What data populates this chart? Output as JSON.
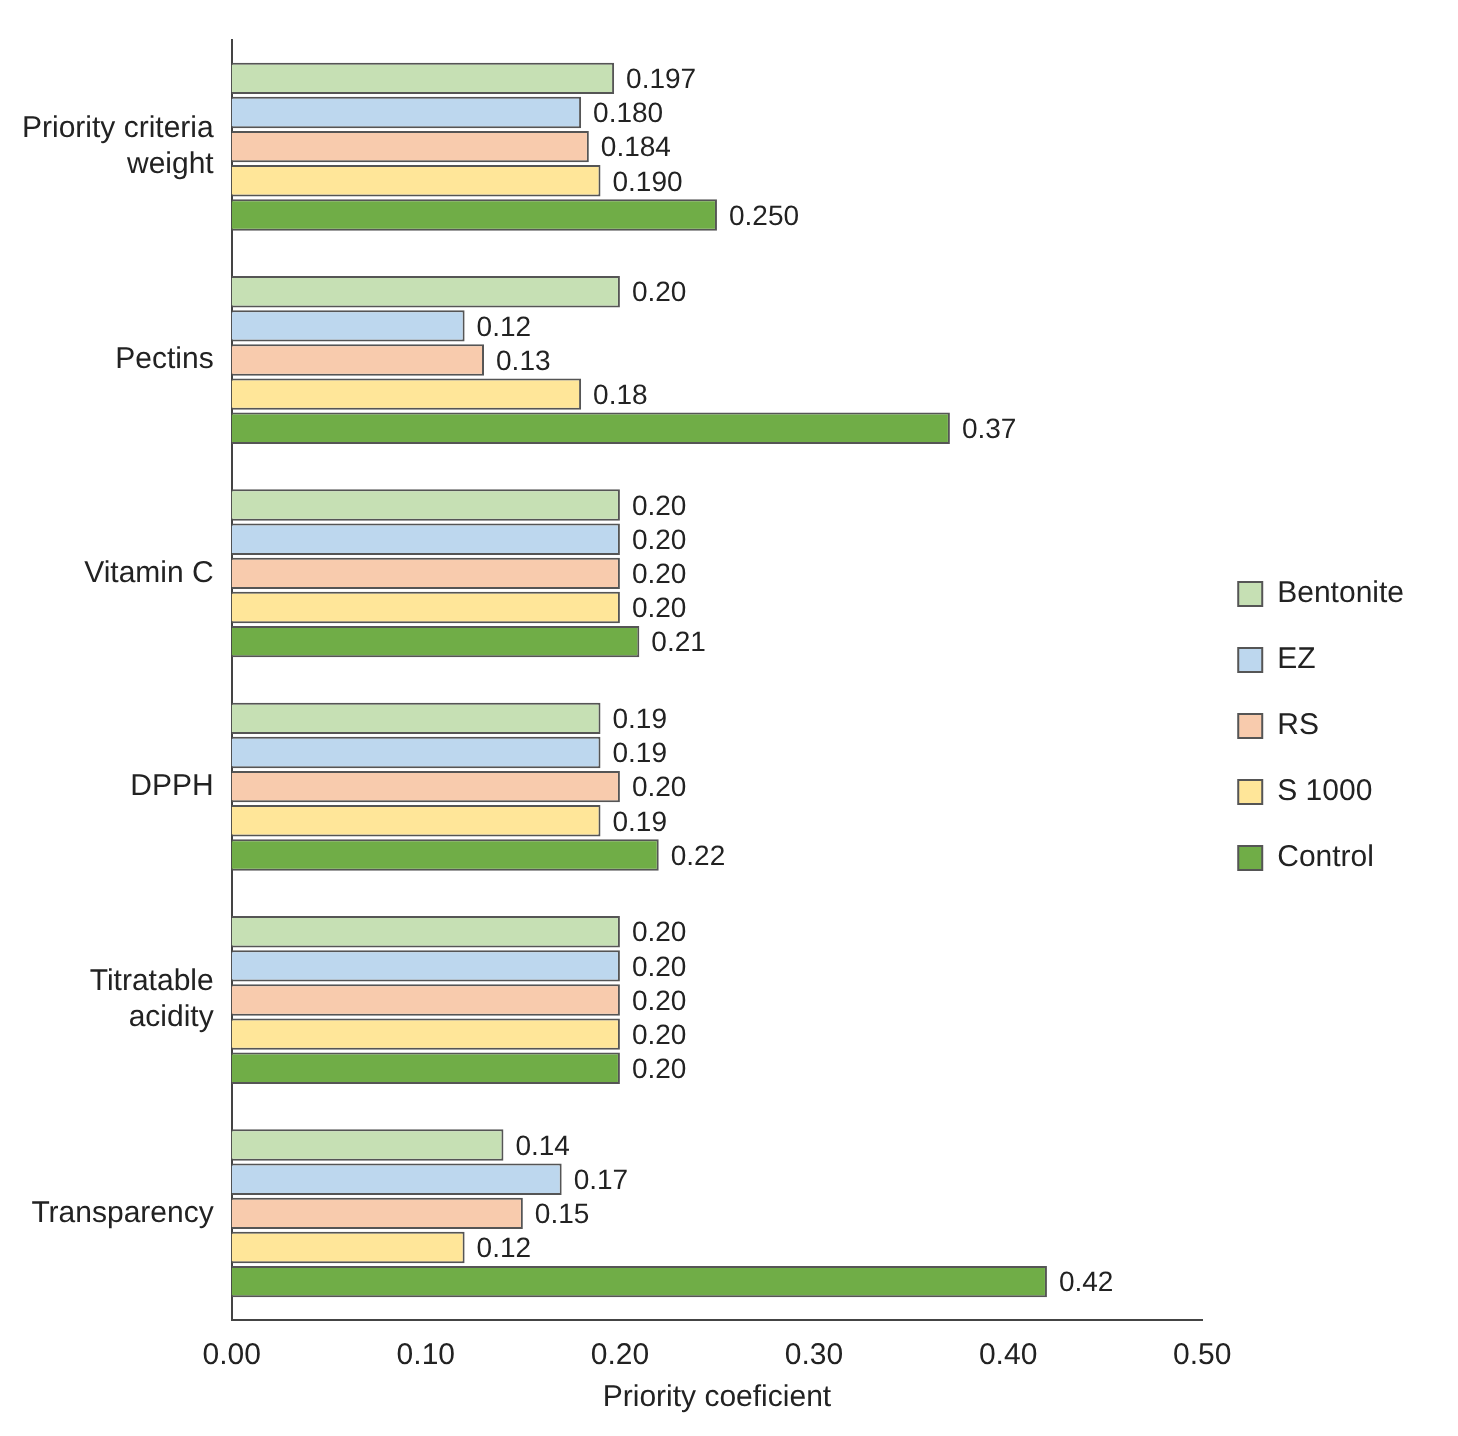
{
  "chart_data": {
    "type": "bar",
    "orientation": "horizontal",
    "xlabel": "Priority coeficient",
    "categories": [
      "Priority criteria weight",
      "Pectins",
      "Vitamin C",
      "DPPH",
      "Titratable acidity",
      "Transparency"
    ],
    "series": [
      {
        "name": "Bentonite",
        "color": "#c6e0b4",
        "values": [
          0.197,
          0.2,
          0.2,
          0.19,
          0.2,
          0.14
        ],
        "value_labels": [
          "0.197",
          "0.20",
          "0.20",
          "0.19",
          "0.20",
          "0.14"
        ]
      },
      {
        "name": "EZ",
        "color": "#bdd7ee",
        "values": [
          0.18,
          0.12,
          0.2,
          0.19,
          0.2,
          0.17
        ],
        "value_labels": [
          "0.180",
          "0.12",
          "0.20",
          "0.19",
          "0.20",
          "0.17"
        ]
      },
      {
        "name": "RS",
        "color": "#f8cbad",
        "values": [
          0.184,
          0.13,
          0.2,
          0.2,
          0.2,
          0.15
        ],
        "value_labels": [
          "0.184",
          "0.13",
          "0.20",
          "0.20",
          "0.20",
          "0.15"
        ]
      },
      {
        "name": "S 1000",
        "color": "#ffe699",
        "values": [
          0.19,
          0.18,
          0.2,
          0.19,
          0.2,
          0.12
        ],
        "value_labels": [
          "0.190",
          "0.18",
          "0.20",
          "0.19",
          "0.20",
          "0.12"
        ]
      },
      {
        "name": "Control",
        "color": "#70ad47",
        "values": [
          0.25,
          0.37,
          0.21,
          0.22,
          0.2,
          0.42
        ],
        "value_labels": [
          "0.250",
          "0.37",
          "0.21",
          "0.22",
          "0.20",
          "0.42"
        ]
      }
    ],
    "xlim": [
      0,
      0.5
    ],
    "xticks": [
      {
        "value": 0,
        "label": "0.00"
      },
      {
        "value": 0.1,
        "label": "0.10"
      },
      {
        "value": 0.2,
        "label": "0.20"
      },
      {
        "value": 0.3,
        "label": "0.30"
      },
      {
        "value": 0.4,
        "label": "0.40"
      },
      {
        "value": 0.5,
        "label": "0.50"
      }
    ],
    "grid": false,
    "legend": "right"
  }
}
